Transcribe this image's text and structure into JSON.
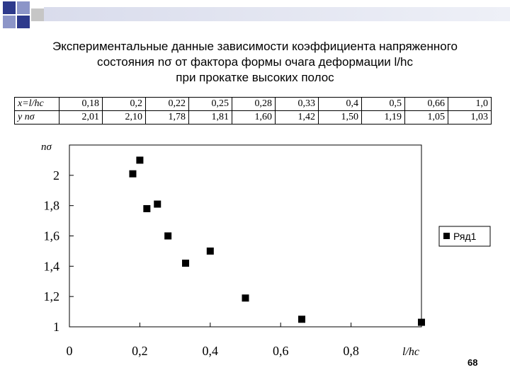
{
  "title": {
    "line1": "Экспериментальные данные зависимости коэффициента напряженного",
    "line2": "состояния nσ от фактора формы очага деформации l/hc",
    "line3": "при прокатке высоких полос"
  },
  "table": {
    "row_x_label": "x=l/hc",
    "row_y_label": "y     nσ",
    "x_values": [
      "0,18",
      "0,2",
      "0,22",
      "0,25",
      "0,28",
      "0,33",
      "0,4",
      "0,5",
      "0,66",
      "1,0"
    ],
    "y_values": [
      "2,01",
      "2,10",
      "1,78",
      "1,81",
      "1,60",
      "1,42",
      "1,50",
      "1,19",
      "1,05",
      "1,03"
    ]
  },
  "chart_data": {
    "type": "scatter",
    "xlabel": "l/hc",
    "ylabel": "nσ",
    "xlim": [
      0,
      1.0
    ],
    "ylim": [
      1,
      2.2
    ],
    "x_ticks": [
      "0",
      "0,2",
      "0,4",
      "0,6",
      "0,8"
    ],
    "y_ticks": [
      "1",
      "1,2",
      "1,4",
      "1,6",
      "1,8",
      "2"
    ],
    "grid": false,
    "legend_position": "right",
    "series": [
      {
        "name": "Ряд1",
        "x": [
          0.18,
          0.2,
          0.22,
          0.25,
          0.28,
          0.33,
          0.4,
          0.5,
          0.66,
          1.0
        ],
        "y": [
          2.01,
          2.1,
          1.78,
          1.81,
          1.6,
          1.42,
          1.5,
          1.19,
          1.05,
          1.03
        ]
      }
    ]
  },
  "page_number": "68",
  "colors": {
    "accent_dark": "#2e3a8c",
    "accent_light": "#8c95c8",
    "accent_grey": "#c6c6c6",
    "marker": "#000000"
  }
}
